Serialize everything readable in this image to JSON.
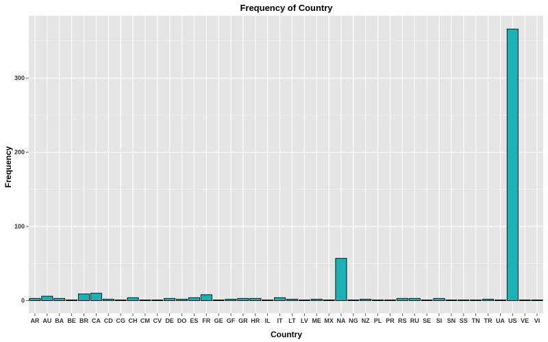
{
  "chart_data": {
    "type": "bar",
    "title": "Frequency of Country",
    "xlabel": "Country",
    "ylabel": "Frequency",
    "categories": [
      "AR",
      "AU",
      "BA",
      "BE",
      "BR",
      "CA",
      "CD",
      "CG",
      "CH",
      "CM",
      "CV",
      "DE",
      "DO",
      "ES",
      "FR",
      "GE",
      "GF",
      "GR",
      "HR",
      "IL",
      "IT",
      "LT",
      "LV",
      "ME",
      "MX",
      "NA",
      "NG",
      "NZ",
      "PL",
      "PR",
      "RS",
      "RU",
      "SE",
      "SI",
      "SN",
      "SS",
      "TN",
      "TR",
      "UA",
      "US",
      "VE",
      "VI"
    ],
    "values": [
      3,
      6,
      3,
      1,
      9,
      10,
      2,
      1,
      4,
      1,
      1,
      3,
      2,
      4,
      8,
      1,
      2,
      3,
      3,
      1,
      4,
      2,
      1,
      2,
      1,
      57,
      1,
      2,
      1,
      1,
      3,
      3,
      1,
      3,
      1,
      1,
      1,
      2,
      1,
      366,
      1,
      1
    ],
    "yticks": [
      0,
      100,
      200,
      300
    ],
    "ylim": [
      -17,
      384
    ],
    "grid": true,
    "bar_fill": "#1ab3b3",
    "bar_stroke": "#000000",
    "panel_background": "#e5e5e5"
  }
}
